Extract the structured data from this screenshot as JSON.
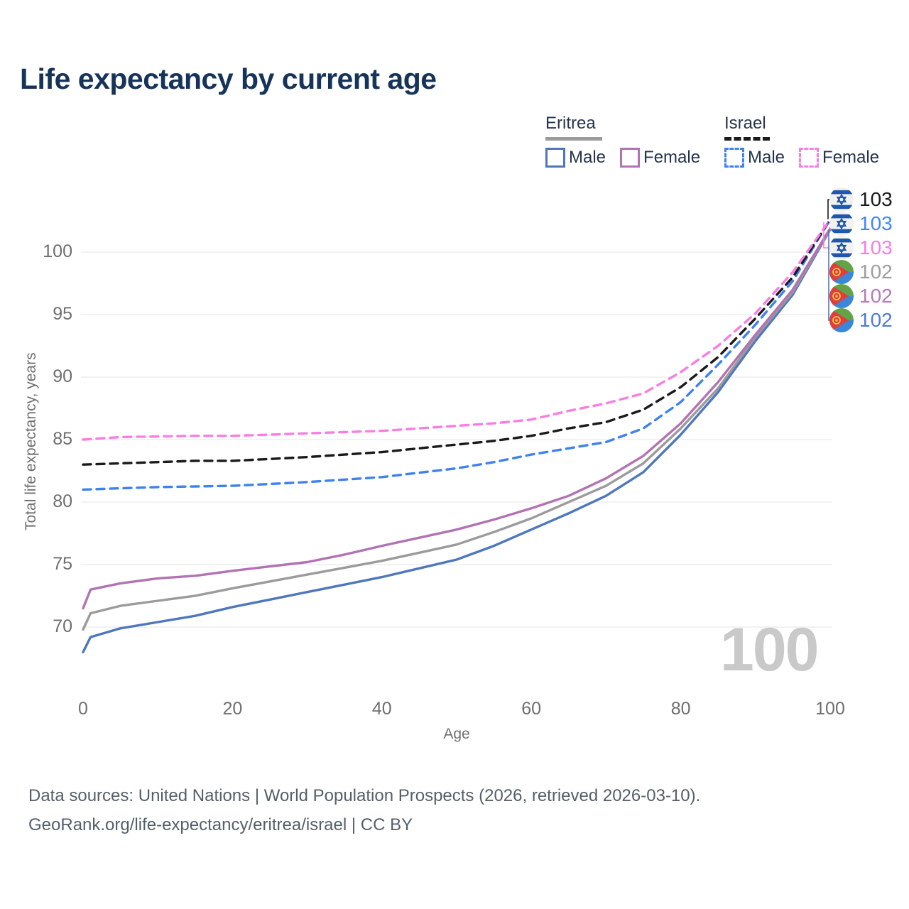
{
  "title": "Life expectancy by current age",
  "legend": {
    "groups": [
      {
        "label": "Eritrea",
        "style": "solid",
        "items": [
          {
            "label": "Male",
            "color": "#4e77bd"
          },
          {
            "label": "Female",
            "color": "#b273b3"
          }
        ]
      },
      {
        "label": "Israel",
        "style": "dashed",
        "items": [
          {
            "label": "Male",
            "color": "#3d82ee"
          },
          {
            "label": "Female",
            "color": "#fa7de1"
          }
        ]
      }
    ]
  },
  "axes": {
    "x": {
      "label": "Age",
      "ticks": [
        0,
        20,
        40,
        60,
        80,
        100
      ]
    },
    "y": {
      "label": "Total life expectancy, years",
      "ticks": [
        70,
        75,
        80,
        85,
        90,
        95,
        100
      ]
    }
  },
  "watermark": "100",
  "endpoints": [
    {
      "flag": "israel",
      "value": "103",
      "color": "#1a1a1a"
    },
    {
      "flag": "israel",
      "value": "103",
      "color": "#4287f5"
    },
    {
      "flag": "israel",
      "value": "103",
      "color": "#f97ce2"
    },
    {
      "flag": "eritrea",
      "value": "102",
      "color": "#9e9e9e"
    },
    {
      "flag": "eritrea",
      "value": "102",
      "color": "#b57bb8"
    },
    {
      "flag": "eritrea",
      "value": "102",
      "color": "#4f7ec9"
    }
  ],
  "footer": {
    "line1": "Data sources: United Nations | World Population Prospects (2026, retrieved 2026-03-10).",
    "line2": "GeoRank.org/life-expectancy/eritrea/israel | CC BY"
  },
  "chart_data": {
    "type": "line",
    "title": "Life expectancy by current age",
    "xlabel": "Age",
    "ylabel": "Total life expectancy, years",
    "xlim": [
      0,
      100
    ],
    "ylim": [
      66.5,
      103.5
    ],
    "grid": "horizontal",
    "legend_position": "top-right",
    "series": [
      {
        "name": "Eritrea Male",
        "country": "Eritrea",
        "sex": "male",
        "color": "#4e77bd",
        "dash": false,
        "x": [
          0,
          1,
          5,
          10,
          15,
          20,
          25,
          30,
          35,
          40,
          45,
          50,
          55,
          60,
          65,
          70,
          75,
          80,
          85,
          90,
          95,
          100
        ],
        "y": [
          68.0,
          69.2,
          69.9,
          70.4,
          70.9,
          71.6,
          72.2,
          72.8,
          73.4,
          74.0,
          74.7,
          75.4,
          76.5,
          77.8,
          79.1,
          80.5,
          82.4,
          85.4,
          88.8,
          92.9,
          96.6,
          101.8
        ]
      },
      {
        "name": "Eritrea Both sexes",
        "country": "Eritrea",
        "sex": "both",
        "color": "#9b9b9b",
        "dash": false,
        "x": [
          0,
          1,
          5,
          10,
          15,
          20,
          25,
          30,
          35,
          40,
          45,
          50,
          55,
          60,
          65,
          70,
          75,
          80,
          85,
          90,
          95,
          100
        ],
        "y": [
          69.8,
          71.1,
          71.7,
          72.1,
          72.5,
          73.1,
          73.65,
          74.2,
          74.75,
          75.3,
          75.95,
          76.6,
          77.6,
          78.7,
          80.0,
          81.3,
          83.1,
          85.9,
          89.1,
          93.2,
          96.8,
          101.85
        ]
      },
      {
        "name": "Eritrea Female",
        "country": "Eritrea",
        "sex": "female",
        "color": "#b273b3",
        "dash": false,
        "x": [
          0,
          1,
          5,
          10,
          15,
          20,
          25,
          30,
          35,
          40,
          45,
          50,
          55,
          60,
          65,
          70,
          75,
          80,
          85,
          90,
          95,
          100
        ],
        "y": [
          71.5,
          73.0,
          73.5,
          73.9,
          74.1,
          74.5,
          74.85,
          75.2,
          75.8,
          76.5,
          77.15,
          77.8,
          78.6,
          79.5,
          80.5,
          81.9,
          83.7,
          86.3,
          89.6,
          93.4,
          97.0,
          101.9
        ]
      },
      {
        "name": "Israel Male",
        "country": "Israel",
        "sex": "male",
        "color": "#3d82ee",
        "dash": true,
        "x": [
          0,
          5,
          10,
          15,
          20,
          25,
          30,
          35,
          40,
          45,
          50,
          55,
          60,
          65,
          70,
          75,
          80,
          85,
          90,
          95,
          100
        ],
        "y": [
          81.0,
          81.1,
          81.2,
          81.25,
          81.3,
          81.45,
          81.6,
          81.8,
          82.0,
          82.35,
          82.7,
          83.2,
          83.8,
          84.3,
          84.8,
          85.9,
          88.0,
          91.0,
          94.2,
          97.7,
          102.6
        ]
      },
      {
        "name": "Israel Both sexes",
        "country": "Israel",
        "sex": "both",
        "color": "#1a1a1a",
        "dash": true,
        "x": [
          0,
          5,
          10,
          15,
          20,
          25,
          30,
          35,
          40,
          45,
          50,
          55,
          60,
          65,
          70,
          75,
          80,
          85,
          90,
          95,
          100
        ],
        "y": [
          83.0,
          83.1,
          83.2,
          83.3,
          83.3,
          83.45,
          83.6,
          83.8,
          84.0,
          84.3,
          84.6,
          84.9,
          85.3,
          85.9,
          86.4,
          87.4,
          89.2,
          91.6,
          94.7,
          98.0,
          102.6
        ]
      },
      {
        "name": "Israel Female",
        "country": "Israel",
        "sex": "female",
        "color": "#fa7de1",
        "dash": true,
        "x": [
          0,
          5,
          10,
          15,
          20,
          25,
          30,
          35,
          40,
          45,
          50,
          55,
          60,
          65,
          70,
          75,
          80,
          85,
          90,
          95,
          100
        ],
        "y": [
          85.0,
          85.2,
          85.25,
          85.3,
          85.3,
          85.4,
          85.5,
          85.6,
          85.7,
          85.9,
          86.1,
          86.3,
          86.6,
          87.3,
          87.9,
          88.7,
          90.4,
          92.5,
          95.1,
          98.4,
          102.6
        ]
      }
    ],
    "end_labels": [
      {
        "series": "Israel Both sexes",
        "value": 103
      },
      {
        "series": "Israel Male",
        "value": 103
      },
      {
        "series": "Israel Female",
        "value": 103
      },
      {
        "series": "Eritrea Both sexes",
        "value": 102
      },
      {
        "series": "Eritrea Female",
        "value": 102
      },
      {
        "series": "Eritrea Male",
        "value": 102
      }
    ],
    "annotations": [
      "100"
    ]
  }
}
